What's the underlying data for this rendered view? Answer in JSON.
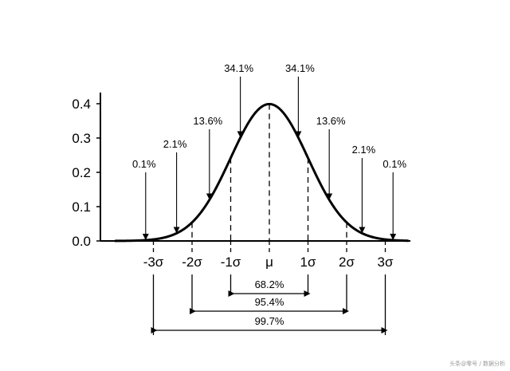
{
  "chart_data": {
    "type": "line",
    "title": "",
    "xlabel": "",
    "ylabel": "",
    "ylim": [
      0,
      0.4
    ],
    "xlim": [
      -3.8,
      3.5
    ],
    "y_ticks": [
      "0.0",
      "0.1",
      "0.2",
      "0.3",
      "0.4"
    ],
    "y_tick_values": [
      0,
      0.1,
      0.2,
      0.3,
      0.4
    ],
    "series": [
      {
        "distribution": "normal",
        "mean": 0,
        "sd": 1
      }
    ],
    "x_markers": [
      {
        "x": -3,
        "label": "-3σ"
      },
      {
        "x": -2,
        "label": "-2σ"
      },
      {
        "x": -1,
        "label": "-1σ"
      },
      {
        "x": 0,
        "label": "μ"
      },
      {
        "x": 1,
        "label": "1σ"
      },
      {
        "x": 2,
        "label": "2σ"
      },
      {
        "x": 3,
        "label": "3σ"
      }
    ],
    "region_annotations": [
      {
        "label": "0.1%",
        "region": [
          -4,
          -3
        ]
      },
      {
        "label": "2.1%",
        "region": [
          -3,
          -2
        ]
      },
      {
        "label": "13.6%",
        "region": [
          -2,
          -1
        ]
      },
      {
        "label": "34.1%",
        "region": [
          -1,
          0
        ]
      },
      {
        "label": "34.1%",
        "region": [
          0,
          1
        ]
      },
      {
        "label": "13.6%",
        "region": [
          1,
          2
        ]
      },
      {
        "label": "2.1%",
        "region": [
          2,
          3
        ]
      },
      {
        "label": "0.1%",
        "region": [
          3,
          4
        ]
      }
    ],
    "ranges": [
      {
        "label": "68.2%",
        "from": -1,
        "to": 1
      },
      {
        "label": "95.4%",
        "from": -2,
        "to": 2
      },
      {
        "label": "99.7%",
        "from": -3,
        "to": 3
      }
    ],
    "grid": false,
    "legend": "none"
  },
  "watermark": "头条@零号 / 数据分析"
}
